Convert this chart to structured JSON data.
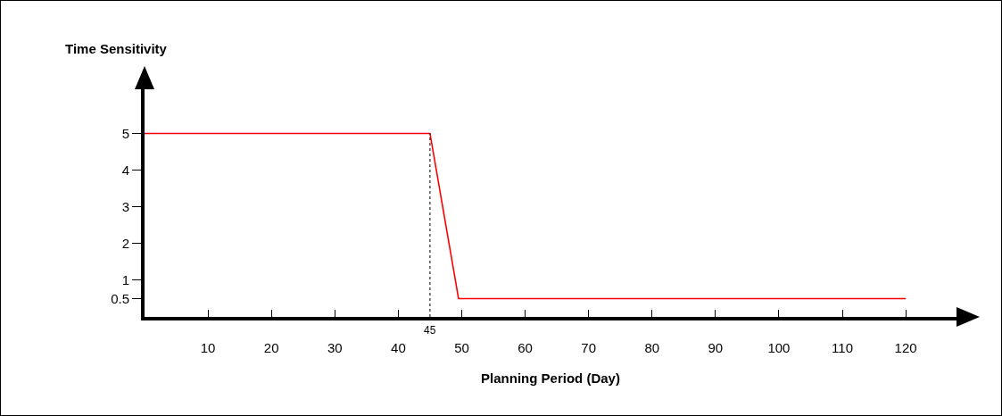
{
  "chart_data": {
    "type": "line",
    "xlabel": "Planning Period (Day)",
    "ylabel": "Time Sensitivity",
    "x": [
      0,
      45,
      49.5,
      120
    ],
    "series": [
      {
        "color": "#ff0000",
        "values": [
          5,
          5,
          0.5,
          0.5
        ]
      }
    ],
    "xlim": [
      0,
      128
    ],
    "xticks": [
      10,
      20,
      30,
      40,
      50,
      60,
      70,
      80,
      90,
      100,
      110,
      120
    ],
    "ylim": [
      0,
      6.3
    ],
    "yticks": [
      0.5,
      1,
      2,
      3,
      4,
      5
    ],
    "ref_lines": [
      {
        "axis": "x",
        "value": 45,
        "label": "45",
        "color": "#000000",
        "line_style": "dotted"
      }
    ],
    "grid": false,
    "marker": "none",
    "line_style": "solid"
  }
}
